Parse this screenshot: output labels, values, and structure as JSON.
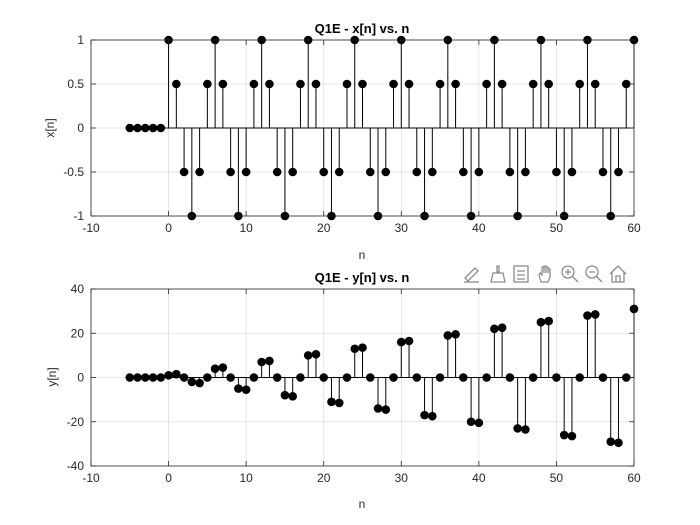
{
  "chart_data": [
    {
      "type": "stem",
      "title": "Q1E - x[n] vs. n",
      "xlabel": "n",
      "ylabel": "x[n]",
      "xlim": [
        -10,
        60
      ],
      "ylim": [
        -1,
        1
      ],
      "xticks": [
        -10,
        0,
        10,
        20,
        30,
        40,
        50,
        60
      ],
      "yticks": [
        -1,
        -0.5,
        0,
        0.5,
        1
      ],
      "grid": true,
      "x_range": [
        -5,
        60
      ],
      "values": [
        0,
        0,
        0,
        0,
        0,
        1,
        0.5,
        -0.5,
        -1,
        -0.5,
        0.5,
        1,
        0.5,
        -0.5,
        -1,
        -0.5,
        0.5,
        1,
        0.5,
        -0.5,
        -1,
        -0.5,
        0.5,
        1,
        0.5,
        -0.5,
        -1,
        -0.5,
        0.5,
        1,
        0.5,
        -0.5,
        -1,
        -0.5,
        0.5,
        1,
        0.5,
        -0.5,
        -1,
        -0.5,
        0.5,
        1,
        0.5,
        -0.5,
        -1,
        -0.5,
        0.5,
        1,
        0.5,
        -0.5,
        -1,
        -0.5,
        0.5,
        1,
        0.5,
        -0.5,
        -1,
        -0.5,
        0.5,
        1,
        0.5,
        -0.5,
        -1,
        -0.5,
        0.5,
        1
      ]
    },
    {
      "type": "stem",
      "title": "Q1E - y[n] vs. n",
      "xlabel": "n",
      "ylabel": "y[n]",
      "xlim": [
        -10,
        60
      ],
      "ylim": [
        -40,
        40
      ],
      "xticks": [
        -10,
        0,
        10,
        20,
        30,
        40,
        50,
        60
      ],
      "yticks": [
        -40,
        -20,
        0,
        20,
        40
      ],
      "grid": true,
      "x_range": [
        -5,
        60
      ],
      "values": [
        0,
        0,
        0,
        0,
        0,
        1,
        1.5,
        0,
        -2,
        -2.5,
        0,
        4,
        4.5,
        0,
        -5,
        -5.5,
        0,
        7,
        7.5,
        0,
        -8,
        -8.5,
        0,
        10,
        10.5,
        0,
        -11,
        -11.5,
        0,
        13,
        13.5,
        0,
        -14,
        -14.5,
        0,
        16,
        16.5,
        0,
        -17,
        -17.5,
        0,
        19,
        19.5,
        0,
        -20,
        -20.5,
        0,
        22,
        22.5,
        0,
        -23,
        -23.5,
        0,
        25,
        25.5,
        0,
        -26,
        -26.5,
        0,
        28,
        28.5,
        0,
        -29,
        -29.5,
        0,
        31
      ]
    }
  ],
  "toolbar": {
    "icons": [
      "edit-data-icon",
      "brush-icon",
      "legend-icon",
      "pan-icon",
      "zoom-in-icon",
      "zoom-out-icon",
      "home-icon"
    ]
  },
  "colors": {
    "marker": "#000000",
    "grid": "#dfdfdf",
    "axis": "#262626",
    "toolbar": "#8c8c8c"
  }
}
